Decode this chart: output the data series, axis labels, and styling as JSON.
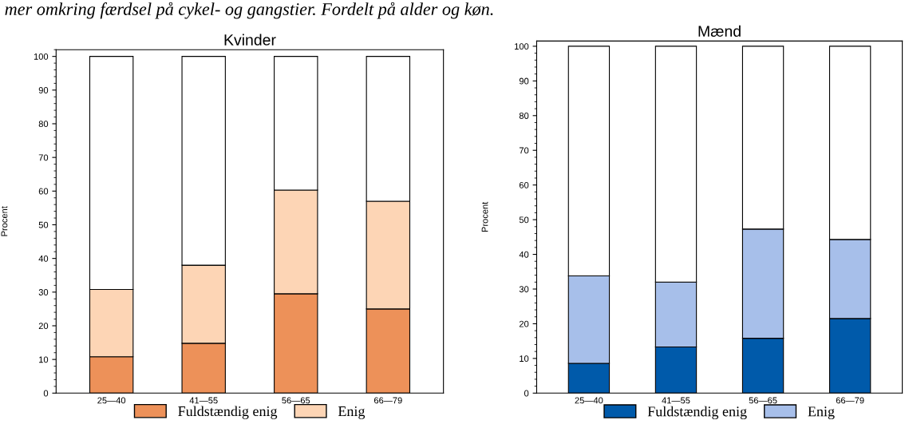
{
  "chart_data": [
    {
      "type": "bar",
      "title": "Kvinder",
      "ylabel": "Procent",
      "stacked": true,
      "categories": [
        "25—40",
        "41—55",
        "56—65",
        "66—79"
      ],
      "series": [
        {
          "name": "Fuldstændig enig",
          "color": "#ed9159",
          "values": [
            10.8,
            14.8,
            29.5,
            25.0
          ]
        },
        {
          "name": "Enig",
          "color": "#fdd5b5",
          "values": [
            20.0,
            23.2,
            30.8,
            32.0
          ]
        },
        {
          "color": "#ffffff",
          "values": [
            69.2,
            62.0,
            39.7,
            43.0
          ]
        }
      ],
      "ylim": [
        0,
        102
      ],
      "yticks": [
        0,
        10,
        20,
        30,
        40,
        50,
        60,
        70,
        80,
        90,
        100
      ],
      "grid": false,
      "legend": "bottom",
      "annotations": [
        "mer omkring færdsel på cykel- og gangstier. Fordelt på alder og køn."
      ]
    },
    {
      "type": "bar",
      "title": "Mænd",
      "ylabel": "Procent",
      "stacked": true,
      "categories": [
        "25—40",
        "41—55",
        "56—65",
        "66—79"
      ],
      "series": [
        {
          "name": "Fuldstændig enig",
          "color": "#005aaa",
          "values": [
            8.6,
            13.3,
            15.8,
            21.5
          ]
        },
        {
          "name": "Enig",
          "color": "#a7bfea",
          "values": [
            25.2,
            18.7,
            31.5,
            22.8
          ]
        },
        {
          "color": "#ffffff",
          "values": [
            66.2,
            68.0,
            52.7,
            55.7
          ]
        }
      ],
      "ylim": [
        0,
        101.5
      ],
      "yticks": [
        0,
        10,
        20,
        30,
        40,
        50,
        60,
        70,
        80,
        90,
        100
      ],
      "grid": false,
      "legend": "bottom"
    }
  ]
}
